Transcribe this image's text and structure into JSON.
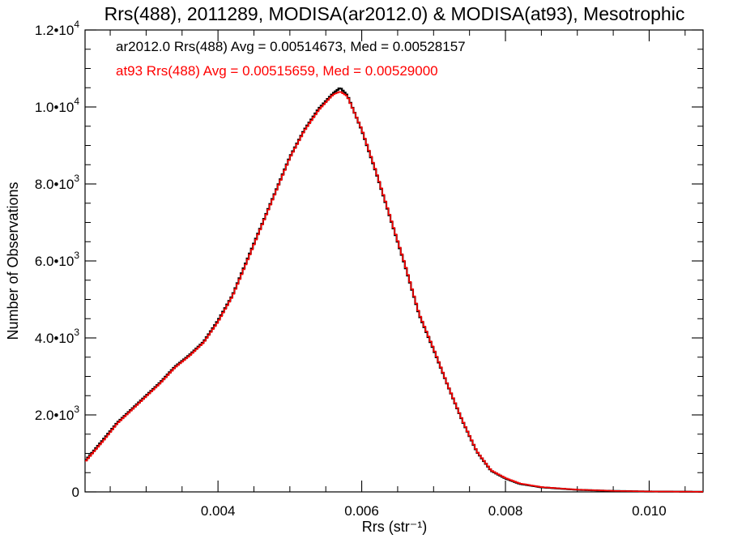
{
  "chart_data": {
    "type": "line",
    "title": "Rrs(488), 2011289, MODISA(ar2012.0) & MODISA(at93), Mesotrophic",
    "xlabel": "Rrs (str⁻¹)",
    "ylabel": "Number of Observations",
    "xlim": [
      0.00215,
      0.01075
    ],
    "ylim": [
      0,
      12000
    ],
    "x_ticks": [
      {
        "value": 0.004,
        "label": "0.004"
      },
      {
        "value": 0.006,
        "label": "0.006"
      },
      {
        "value": 0.008,
        "label": "0.008"
      },
      {
        "value": 0.01,
        "label": "0.010"
      }
    ],
    "y_ticks": [
      {
        "value": 0,
        "mantissa": "0",
        "exponent": ""
      },
      {
        "value": 2000,
        "mantissa": "2.0•10",
        "exponent": "3"
      },
      {
        "value": 4000,
        "mantissa": "4.0•10",
        "exponent": "3"
      },
      {
        "value": 6000,
        "mantissa": "6.0•10",
        "exponent": "3"
      },
      {
        "value": 8000,
        "mantissa": "8.0•10",
        "exponent": "3"
      },
      {
        "value": 10000,
        "mantissa": "1.0•10",
        "exponent": "4"
      },
      {
        "value": 12000,
        "mantissa": "1.2•10",
        "exponent": "4"
      }
    ],
    "grid": false,
    "legend": "top-left",
    "series": [
      {
        "name": "ar2012.0",
        "color": "#000000",
        "annotation": "ar2012.0 Rrs(488) Avg = 0.00514673, Med = 0.00528157",
        "x": [
          0.00215,
          0.0024,
          0.0026,
          0.0028,
          0.003,
          0.0032,
          0.0034,
          0.0036,
          0.0038,
          0.004,
          0.0042,
          0.0044,
          0.0046,
          0.0048,
          0.005,
          0.0052,
          0.0054,
          0.0056,
          0.0057,
          0.0058,
          0.006,
          0.0062,
          0.0064,
          0.0066,
          0.0068,
          0.007,
          0.0072,
          0.0074,
          0.0076,
          0.0078,
          0.008,
          0.0082,
          0.0085,
          0.009,
          0.0095,
          0.01,
          0.01075
        ],
        "y": [
          800,
          1350,
          1800,
          2150,
          2500,
          2850,
          3250,
          3550,
          3900,
          4450,
          5100,
          6000,
          6900,
          7800,
          8700,
          9400,
          9950,
          10350,
          10500,
          10300,
          9400,
          8300,
          7100,
          5900,
          4600,
          3700,
          2750,
          1850,
          1050,
          550,
          350,
          210,
          120,
          55,
          25,
          10,
          3
        ]
      },
      {
        "name": "at93",
        "color": "#ff0000",
        "annotation": "at93 Rrs(488) Avg = 0.00515659, Med = 0.00529000",
        "x": [
          0.00215,
          0.0024,
          0.0026,
          0.0028,
          0.003,
          0.0032,
          0.0034,
          0.0036,
          0.0038,
          0.004,
          0.0042,
          0.0044,
          0.0046,
          0.0048,
          0.005,
          0.0052,
          0.0054,
          0.0056,
          0.0057,
          0.0058,
          0.006,
          0.0062,
          0.0064,
          0.0066,
          0.0068,
          0.007,
          0.0072,
          0.0074,
          0.0076,
          0.0078,
          0.008,
          0.0082,
          0.0085,
          0.009,
          0.0095,
          0.01,
          0.01075
        ],
        "y": [
          780,
          1320,
          1780,
          2130,
          2480,
          2830,
          3230,
          3530,
          3880,
          4420,
          5080,
          5970,
          6880,
          7780,
          8680,
          9380,
          9920,
          10320,
          10400,
          10280,
          9420,
          8320,
          7120,
          5920,
          4620,
          3720,
          2760,
          1860,
          1060,
          560,
          360,
          220,
          125,
          58,
          27,
          11,
          4
        ]
      }
    ]
  }
}
